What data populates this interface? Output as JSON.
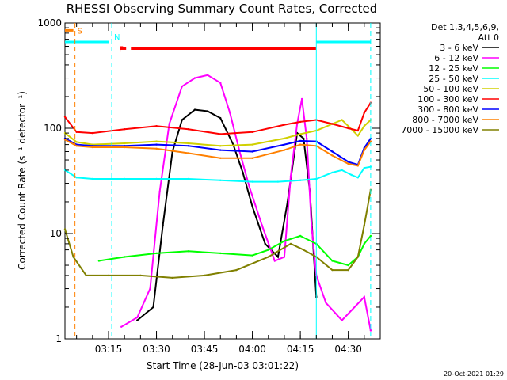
{
  "chart_data": {
    "type": "line",
    "title": "RHESSI Observing Summary Count Rates, Corrected",
    "xlabel": "Start Time (28-Jun-03 03:01:22)",
    "ylabel": "Corrected Count Rate (s⁻¹ detector⁻¹)",
    "y_scale": "log",
    "ylim": [
      1,
      1000
    ],
    "y_ticks": [
      1,
      10,
      100,
      1000
    ],
    "y_tick_labels": [
      "1",
      "10",
      "100",
      "1000"
    ],
    "xlim": [
      "03:01:22",
      "04:40:00"
    ],
    "x_ticks": [
      "03:15",
      "03:30",
      "03:45",
      "04:00",
      "04:15",
      "04:30"
    ],
    "legend_header": [
      "Det 1,3,4,5,6,9,",
      "Att 0"
    ],
    "legend_position": "right-outside",
    "grid": false,
    "series": [
      {
        "name": "3 - 6 keV",
        "color": "#000000",
        "points": [
          [
            "03:24:00",
            1.5
          ],
          [
            "03:29:00",
            2.0
          ],
          [
            "03:32:00",
            12
          ],
          [
            "03:35:00",
            60
          ],
          [
            "03:38:00",
            120
          ],
          [
            "03:42:00",
            150
          ],
          [
            "03:46:00",
            145
          ],
          [
            "03:50:00",
            125
          ],
          [
            "03:54:00",
            70
          ],
          [
            "03:57:00",
            38
          ],
          [
            "04:00:00",
            18
          ],
          [
            "04:04:00",
            8
          ],
          [
            "04:08:00",
            6
          ],
          [
            "04:11:00",
            20
          ],
          [
            "04:14:00",
            90
          ],
          [
            "04:16:00",
            80
          ],
          [
            "04:18:00",
            25
          ],
          [
            "04:20:00",
            2.5
          ]
        ]
      },
      {
        "name": "6 - 12 keV",
        "color": "#ff00ff",
        "points": [
          [
            "03:19:00",
            1.3
          ],
          [
            "03:24:00",
            1.6
          ],
          [
            "03:28:00",
            3.0
          ],
          [
            "03:31:00",
            25
          ],
          [
            "03:34:00",
            110
          ],
          [
            "03:38:00",
            250
          ],
          [
            "03:42:00",
            300
          ],
          [
            "03:46:00",
            320
          ],
          [
            "03:50:00",
            270
          ],
          [
            "03:53:00",
            140
          ],
          [
            "03:56:00",
            60
          ],
          [
            "03:59:00",
            28
          ],
          [
            "04:03:00",
            12
          ],
          [
            "04:07:00",
            5.5
          ],
          [
            "04:10:00",
            6
          ],
          [
            "04:12:00",
            35
          ],
          [
            "04:14:00",
            110
          ],
          [
            "04:15:30",
            190
          ],
          [
            "04:17:00",
            80
          ],
          [
            "04:18:30",
            12
          ],
          [
            "04:20:00",
            4
          ],
          [
            "04:23:00",
            2.2
          ],
          [
            "04:28:00",
            1.5
          ],
          [
            "04:35:00",
            2.5
          ],
          [
            "04:37:00",
            1.2
          ]
        ]
      },
      {
        "name": "12 - 25 keV",
        "color": "#00ff00",
        "points": [
          [
            "03:12:00",
            5.5
          ],
          [
            "03:20:00",
            6
          ],
          [
            "03:30:00",
            6.5
          ],
          [
            "03:40:00",
            6.8
          ],
          [
            "03:50:00",
            6.5
          ],
          [
            "04:00:00",
            6.2
          ],
          [
            "04:05:00",
            7
          ],
          [
            "04:10:00",
            8.5
          ],
          [
            "04:15:00",
            9.5
          ],
          [
            "04:20:00",
            8
          ],
          [
            "04:25:00",
            5.5
          ],
          [
            "04:30:00",
            5
          ],
          [
            "04:33:00",
            6
          ],
          [
            "04:35:00",
            8
          ],
          [
            "04:37:00",
            9.5
          ]
        ]
      },
      {
        "name": "25 - 50 keV",
        "color": "#00ffff",
        "points": [
          [
            "03:01:22",
            40
          ],
          [
            "03:05:00",
            34
          ],
          [
            "03:10:00",
            33
          ],
          [
            "03:20:00",
            33
          ],
          [
            "03:30:00",
            33
          ],
          [
            "03:40:00",
            33
          ],
          [
            "03:50:00",
            32
          ],
          [
            "04:00:00",
            31
          ],
          [
            "04:08:00",
            31
          ],
          [
            "04:15:00",
            32
          ],
          [
            "04:20:00",
            33
          ],
          [
            "04:25:00",
            38
          ],
          [
            "04:28:00",
            40
          ],
          [
            "04:31:00",
            36
          ],
          [
            "04:33:00",
            34
          ],
          [
            "04:35:00",
            42
          ],
          [
            "04:37:00",
            43
          ]
        ]
      },
      {
        "name": "50 - 100 keV",
        "color": "#d0d000",
        "points": [
          [
            "03:01:22",
            90
          ],
          [
            "03:05:00",
            74
          ],
          [
            "03:10:00",
            70
          ],
          [
            "03:20:00",
            72
          ],
          [
            "03:30:00",
            75
          ],
          [
            "03:40:00",
            72
          ],
          [
            "03:50:00",
            68
          ],
          [
            "04:00:00",
            70
          ],
          [
            "04:10:00",
            80
          ],
          [
            "04:15:00",
            88
          ],
          [
            "04:20:00",
            95
          ],
          [
            "04:25:00",
            110
          ],
          [
            "04:28:00",
            120
          ],
          [
            "04:30:00",
            105
          ],
          [
            "04:33:00",
            85
          ],
          [
            "04:35:00",
            105
          ],
          [
            "04:37:00",
            120
          ]
        ]
      },
      {
        "name": "100 - 300 keV",
        "color": "#ff0000",
        "points": [
          [
            "03:01:22",
            128
          ],
          [
            "03:05:00",
            92
          ],
          [
            "03:10:00",
            90
          ],
          [
            "03:20:00",
            98
          ],
          [
            "03:30:00",
            105
          ],
          [
            "03:40:00",
            98
          ],
          [
            "03:50:00",
            88
          ],
          [
            "04:00:00",
            92
          ],
          [
            "04:10:00",
            108
          ],
          [
            "04:15:00",
            115
          ],
          [
            "04:20:00",
            120
          ],
          [
            "04:25:00",
            110
          ],
          [
            "04:30:00",
            100
          ],
          [
            "04:33:00",
            95
          ],
          [
            "04:35:00",
            140
          ],
          [
            "04:37:00",
            175
          ]
        ]
      },
      {
        "name": "300 - 800 keV",
        "color": "#0000ff",
        "points": [
          [
            "03:01:22",
            80
          ],
          [
            "03:05:00",
            70
          ],
          [
            "03:10:00",
            68
          ],
          [
            "03:20:00",
            68
          ],
          [
            "03:30:00",
            70
          ],
          [
            "03:40:00",
            68
          ],
          [
            "03:50:00",
            62
          ],
          [
            "04:00:00",
            60
          ],
          [
            "04:10:00",
            70
          ],
          [
            "04:15:00",
            76
          ],
          [
            "04:20:00",
            75
          ],
          [
            "04:25:00",
            60
          ],
          [
            "04:30:00",
            48
          ],
          [
            "04:33:00",
            45
          ],
          [
            "04:35:00",
            65
          ],
          [
            "04:37:00",
            80
          ]
        ]
      },
      {
        "name": "800 - 7000 keV",
        "color": "#ff8000",
        "points": [
          [
            "03:01:22",
            78
          ],
          [
            "03:05:00",
            68
          ],
          [
            "03:10:00",
            66
          ],
          [
            "03:20:00",
            66
          ],
          [
            "03:30:00",
            64
          ],
          [
            "03:40:00",
            58
          ],
          [
            "03:50:00",
            52
          ],
          [
            "04:00:00",
            52
          ],
          [
            "04:10:00",
            62
          ],
          [
            "04:15:00",
            70
          ],
          [
            "04:20:00",
            68
          ],
          [
            "04:25:00",
            55
          ],
          [
            "04:30:00",
            46
          ],
          [
            "04:33:00",
            44
          ],
          [
            "04:35:00",
            62
          ],
          [
            "04:37:00",
            75
          ]
        ]
      },
      {
        "name": "7000 - 15000 keV",
        "color": "#808000",
        "points": [
          [
            "03:01:22",
            11
          ],
          [
            "03:04:00",
            6
          ],
          [
            "03:08:00",
            4
          ],
          [
            "03:15:00",
            4
          ],
          [
            "03:25:00",
            4
          ],
          [
            "03:35:00",
            3.8
          ],
          [
            "03:45:00",
            4
          ],
          [
            "03:55:00",
            4.5
          ],
          [
            "04:05:00",
            6
          ],
          [
            "04:12:00",
            8
          ],
          [
            "04:16:00",
            7
          ],
          [
            "04:20:00",
            6
          ],
          [
            "04:25:00",
            4.5
          ],
          [
            "04:30:00",
            4.5
          ],
          [
            "04:33:00",
            6
          ],
          [
            "04:35:00",
            12
          ],
          [
            "04:37:00",
            26
          ]
        ]
      }
    ],
    "annotations": [
      {
        "label": "S",
        "color": "#ff8000",
        "x": "03:04:30",
        "marker_line": "dashed-vertical"
      },
      {
        "label": "N",
        "color": "#00ffff",
        "x": "03:16:00",
        "marker_line": "dashed-vertical"
      },
      {
        "label": "F",
        "color": "#ff0000",
        "x": "03:17:30"
      }
    ],
    "status_bars": [
      {
        "name": "S",
        "color": "#ff8000",
        "y": 850,
        "intervals": [
          [
            "03:01:22",
            "03:04:00"
          ]
        ]
      },
      {
        "name": "N",
        "color": "#00ffff",
        "y": 660,
        "intervals": [
          [
            "03:01:22",
            "03:15:00"
          ],
          [
            "04:20:00",
            "04:37:00"
          ]
        ]
      },
      {
        "name": "F",
        "color": "#ff0000",
        "y": 570,
        "intervals": [
          [
            "03:18:30",
            "03:20:30"
          ],
          [
            "03:22:00",
            "04:20:00"
          ]
        ]
      }
    ],
    "vertical_markers": [
      {
        "x": "03:04:30",
        "color": "#ff8000",
        "style": "dashed"
      },
      {
        "x": "03:16:00",
        "color": "#00ffff",
        "style": "dashed"
      },
      {
        "x": "04:20:00",
        "color": "#00ffff",
        "style": "solid"
      },
      {
        "x": "04:37:00",
        "color": "#00ffff",
        "style": "dashed"
      }
    ]
  },
  "footer": {
    "timestamp": "20-Oct-2021 01:29"
  }
}
